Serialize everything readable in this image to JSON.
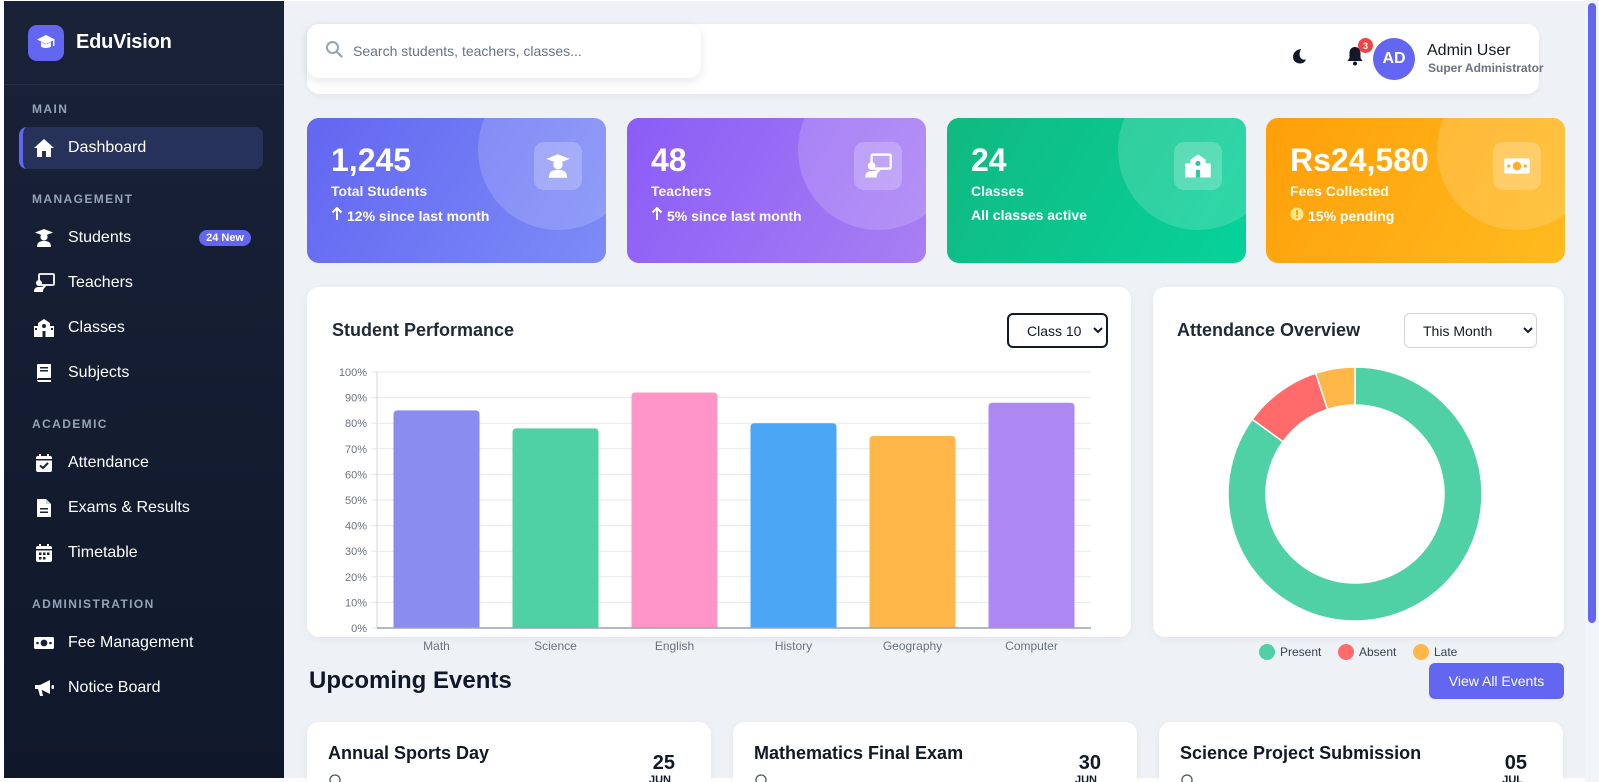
{
  "brand": {
    "name": "EduVision",
    "icon": "graduation-cap-icon"
  },
  "sidebar": {
    "sections": [
      "MAIN",
      "MANAGEMENT",
      "ACADEMIC",
      "ADMINISTRATION"
    ],
    "items": [
      {
        "label": "Dashboard",
        "icon": "home-icon",
        "active": true
      },
      {
        "label": "Students",
        "icon": "student-icon",
        "badge": "24 New"
      },
      {
        "label": "Teachers",
        "icon": "teacher-icon"
      },
      {
        "label": "Classes",
        "icon": "school-icon"
      },
      {
        "label": "Subjects",
        "icon": "book-icon"
      },
      {
        "label": "Attendance",
        "icon": "calendar-check-icon"
      },
      {
        "label": "Exams & Results",
        "icon": "file-icon"
      },
      {
        "label": "Timetable",
        "icon": "calendar-icon"
      },
      {
        "label": "Fee Management",
        "icon": "money-icon"
      },
      {
        "label": "Notice Board",
        "icon": "megaphone-icon"
      }
    ]
  },
  "topbar": {
    "search_placeholder": "Search students, teachers, classes...",
    "notification_count": "3",
    "avatar_initials": "AD",
    "user_name": "Admin User",
    "user_role": "Super Administrator"
  },
  "stats": [
    {
      "value": "1,245",
      "label": "Total Students",
      "sub": "12% since last month",
      "color": "#6366f1"
    },
    {
      "value": "48",
      "label": "Teachers",
      "sub": "5% since last month",
      "color": "#8b5cf6"
    },
    {
      "value": "24",
      "label": "Classes",
      "sub": "All classes active",
      "color": "#10b981"
    },
    {
      "value": "Rs24,580",
      "label": "Fees Collected",
      "sub": "15% pending",
      "color": "#f59e0b"
    }
  ],
  "performance": {
    "title": "Student Performance",
    "class_select": "Class 10"
  },
  "attendance": {
    "title": "Attendance Overview",
    "period_select": "This Month"
  },
  "chart_data": [
    {
      "type": "bar",
      "title": "Student Performance",
      "categories": [
        "Math",
        "Science",
        "English",
        "History",
        "Geography",
        "Computer"
      ],
      "values": [
        85,
        78,
        92,
        80,
        75,
        88
      ],
      "colors": [
        "#8b8cf0",
        "#4fd1a5",
        "#ff94c6",
        "#4ba6f5",
        "#ffb74a",
        "#ad88f2"
      ],
      "yticks": [
        "0%",
        "10%",
        "20%",
        "30%",
        "40%",
        "50%",
        "60%",
        "70%",
        "80%",
        "90%",
        "100%"
      ],
      "ylim": [
        0,
        100
      ],
      "grid": true
    },
    {
      "type": "pie",
      "title": "Attendance Overview",
      "labels": [
        "Present",
        "Absent",
        "Late"
      ],
      "values": [
        85,
        10,
        5
      ],
      "colors": [
        "#4fd1a5",
        "#ff6b6b",
        "#ffb74a"
      ],
      "donut": true,
      "legend": "bottom"
    }
  ],
  "events": {
    "title": "Upcoming Events",
    "view_all": "View All Events",
    "items": [
      {
        "title": "Annual Sports Day",
        "day": "25",
        "month": "JUN"
      },
      {
        "title": "Mathematics Final Exam",
        "day": "30",
        "month": "JUN"
      },
      {
        "title": "Science Project Submission",
        "day": "05",
        "month": "JUL"
      }
    ]
  }
}
